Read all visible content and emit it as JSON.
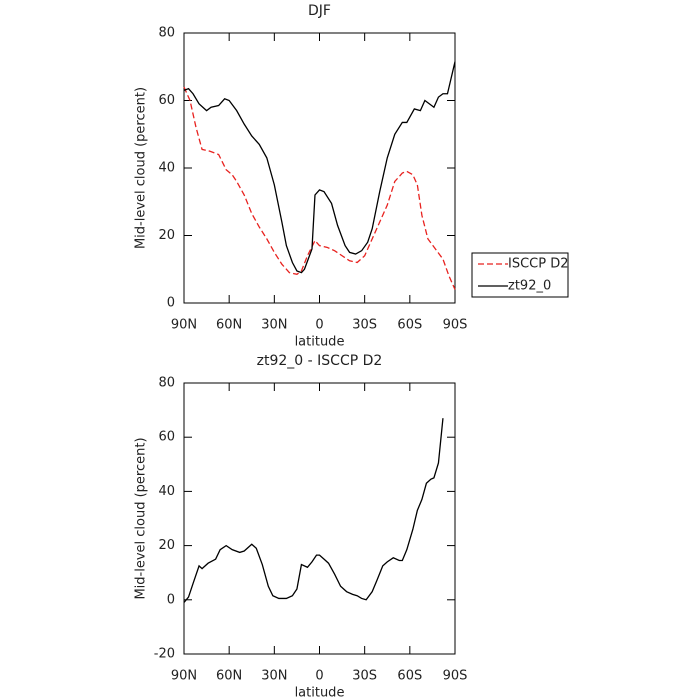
{
  "chart_data": [
    {
      "type": "line",
      "title": "DJF",
      "xlabel": "latitude",
      "ylabel": "Mid-level cloud (percent)",
      "xlim": [
        90,
        -90
      ],
      "xticks": [
        {
          "value": 90,
          "label": "90N"
        },
        {
          "value": 60,
          "label": "60N"
        },
        {
          "value": 30,
          "label": "30N"
        },
        0,
        {
          "value": -30,
          "label": "30S"
        },
        {
          "value": -60,
          "label": "60S"
        },
        {
          "value": -90,
          "label": "90S"
        }
      ],
      "ylim": [
        0,
        80
      ],
      "yticks": [
        0,
        20,
        40,
        60,
        80
      ],
      "series": [
        {
          "name": "ISCCP D2",
          "color": "#e8221f",
          "dash": true,
          "x": [
            90,
            86,
            82,
            78,
            73,
            67,
            62,
            58,
            55,
            50,
            45,
            40,
            35,
            30,
            25,
            20,
            15,
            12,
            8,
            3,
            0,
            -5,
            -10,
            -15,
            -20,
            -25,
            -30,
            -35,
            -40,
            -45,
            -50,
            -55,
            -58,
            -62,
            -65,
            -68,
            -72,
            -77,
            -82,
            -86,
            -90
          ],
          "values": [
            64,
            60,
            52,
            45.5,
            45,
            44,
            39.5,
            38,
            36,
            32,
            26.5,
            22.5,
            19,
            15,
            11.5,
            9,
            8.5,
            9.5,
            14,
            18.5,
            17,
            16.5,
            15.5,
            14,
            12.5,
            12,
            14,
            19,
            24,
            29,
            36,
            38.5,
            39,
            38,
            35,
            26,
            19,
            16,
            13,
            8,
            4
          ]
        },
        {
          "name": "zt92_0",
          "color": "#000000",
          "dash": false,
          "x": [
            90,
            87,
            84,
            80,
            75,
            72,
            67,
            63,
            60,
            55,
            50,
            45,
            40,
            35,
            30,
            25,
            22,
            18,
            15,
            12,
            10,
            5,
            3,
            0,
            -3,
            -8,
            -12,
            -17,
            -20,
            -24,
            -28,
            -32,
            -35,
            -40,
            -45,
            -50,
            -55,
            -58,
            -63,
            -67,
            -70,
            -73,
            -76,
            -79,
            -82,
            -85,
            -90
          ],
          "values": [
            63,
            63.5,
            62,
            59,
            57,
            58,
            58.5,
            60.5,
            60,
            57,
            53,
            49.5,
            47,
            43,
            35,
            24,
            17,
            12,
            9.5,
            9,
            10,
            16,
            32,
            33.5,
            33,
            29.5,
            23,
            17,
            15,
            14.5,
            15.5,
            18,
            22,
            33,
            43,
            50,
            53.5,
            53.5,
            57.5,
            57,
            60,
            59,
            58,
            61,
            62,
            62,
            71.5
          ]
        }
      ]
    },
    {
      "type": "line",
      "title": "zt92_0 - ISCCP D2",
      "xlabel": "latitude",
      "ylabel": "Mid-level cloud (percent)",
      "xlim": [
        90,
        -90
      ],
      "xticks": [
        {
          "value": 90,
          "label": "90N"
        },
        {
          "value": 60,
          "label": "60N"
        },
        {
          "value": 30,
          "label": "30N"
        },
        0,
        {
          "value": -30,
          "label": "30S"
        },
        {
          "value": -60,
          "label": "60S"
        },
        {
          "value": -90,
          "label": "90S"
        }
      ],
      "ylim": [
        -20,
        80
      ],
      "yticks": [
        -20,
        0,
        20,
        40,
        60,
        80
      ],
      "x": [
        90,
        87,
        84,
        80,
        78,
        74,
        69,
        66,
        62,
        58,
        53,
        50,
        45,
        42,
        38,
        34,
        31,
        27,
        22,
        18,
        15,
        12,
        8,
        5,
        2,
        0,
        -3,
        -6,
        -10,
        -14,
        -18,
        -22,
        -25,
        -28,
        -31,
        -35,
        -38,
        -42,
        -45,
        -49,
        -53,
        -55,
        -58,
        -62,
        -65,
        -68,
        -71,
        -74,
        -76,
        -79,
        -82
      ],
      "values": [
        -1,
        1,
        6,
        12.5,
        11.5,
        13.5,
        15,
        18.5,
        20,
        18.5,
        17.5,
        18,
        20.5,
        19,
        13,
        5,
        1.5,
        0.5,
        0.5,
        1.5,
        4,
        13,
        12,
        14,
        16.5,
        16.5,
        15,
        13.5,
        9.5,
        5,
        3,
        2,
        1.5,
        0.5,
        0,
        3,
        7,
        12.5,
        14,
        15.5,
        14.5,
        14.5,
        18.5,
        26,
        33,
        37,
        43,
        44.5,
        45,
        50.5,
        67
      ],
      "color": "#000000"
    }
  ]
}
